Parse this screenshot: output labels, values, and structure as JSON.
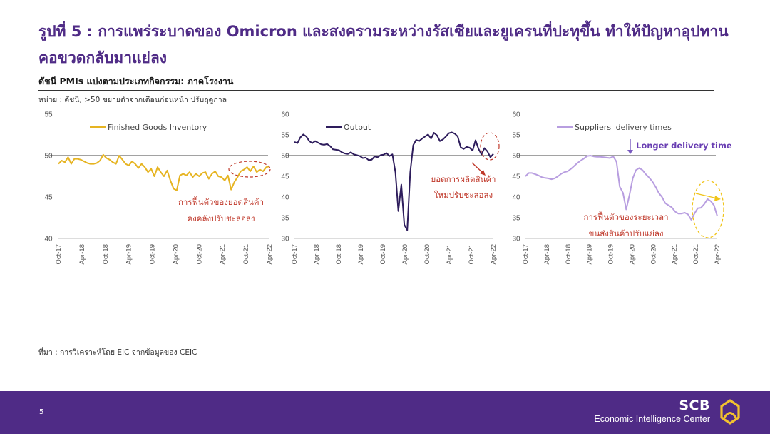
{
  "header": {
    "title": "รูปที่ 5 : การแพร่ระบาดของ Omicron และสงครามระหว่างรัสเซียและยูเครนที่ปะทุขึ้น ทำให้ปัญหาอุปทานคอขวดกลับมาแย่ลง",
    "subtitle": "ดัชนี PMIs แบ่งตามประเภทกิจกรรม: ภาคโรงงาน",
    "unit_note": "หน่วย : ดัชนี, >50 ขยายตัวจากเดือนก่อนหน้า ปรับฤดูกาล"
  },
  "source": "ที่มา : การวิเคราะห์โดย EIC จากข้อมูลของ CEIC",
  "footer": {
    "page_number": "5",
    "brand_name": "SCB",
    "brand_sub": "Economic Intelligence Center"
  },
  "colors": {
    "title": "#4f2b86",
    "footer": "#4f2b86",
    "annotation": "#c0392b",
    "gold": "#e6b422",
    "navy": "#2e1d5c",
    "lavender": "#b89ee0",
    "ellipse": "#f0c419"
  },
  "chart_data": [
    {
      "type": "line",
      "ylim": [
        40,
        55
      ],
      "yticks": [
        40,
        45,
        50,
        55
      ],
      "reference_line": 50,
      "x_ticks": [
        "Oct-17",
        "Apr-18",
        "Oct-18",
        "Apr-19",
        "Oct-19",
        "Apr-20",
        "Oct-20",
        "Apr-21",
        "Oct-21",
        "Apr-22"
      ],
      "x_start": "Oct-17",
      "series": [
        {
          "name": "Finished Goods Inventory",
          "color": "#e6b422",
          "values": [
            49.0,
            49.4,
            49.2,
            49.8,
            49.0,
            49.6,
            49.6,
            49.5,
            49.3,
            49.1,
            49.0,
            49.0,
            49.1,
            49.4,
            50.1,
            49.7,
            49.5,
            49.2,
            49.0,
            50.0,
            49.5,
            49.0,
            48.8,
            49.3,
            49.0,
            48.5,
            49.0,
            48.6,
            48.0,
            48.4,
            47.5,
            48.6,
            48.0,
            47.5,
            48.2,
            47.0,
            46.0,
            45.8,
            47.6,
            47.8,
            47.6,
            48.0,
            47.4,
            47.8,
            47.5,
            47.9,
            48.0,
            47.2,
            47.8,
            48.1,
            47.5,
            47.4,
            47.0,
            47.6,
            45.9,
            46.8,
            47.4,
            48.1,
            48.3,
            48.6,
            48.1,
            48.7,
            48.0,
            48.3,
            48.1,
            48.6,
            48.7
          ]
        }
      ],
      "annotation": [
        "การฟื้นตัวของยอดสินค้า",
        "คงคลังปรับชะลอลง"
      ]
    },
    {
      "type": "line",
      "ylim": [
        30,
        60
      ],
      "yticks": [
        30,
        35,
        40,
        45,
        50,
        55,
        60
      ],
      "reference_line": 50,
      "x_ticks": [
        "Oct-17",
        "Apr-18",
        "Oct-18",
        "Apr-19",
        "Oct-19",
        "Apr-20",
        "Oct-20",
        "Apr-21",
        "Oct-21",
        "Apr-22"
      ],
      "x_start": "Oct-17",
      "series": [
        {
          "name": "Output",
          "color": "#2e1d5c",
          "values": [
            53.3,
            53.0,
            54.4,
            55.1,
            54.6,
            53.5,
            53.0,
            53.5,
            53.1,
            52.7,
            52.6,
            52.8,
            52.3,
            51.5,
            51.4,
            51.3,
            50.8,
            50.5,
            50.4,
            50.8,
            50.3,
            50.1,
            49.9,
            49.4,
            49.5,
            48.9,
            49.0,
            49.8,
            49.6,
            50.1,
            50.2,
            50.6,
            49.9,
            50.3,
            46.0,
            36.6,
            43.0,
            33.3,
            32.0,
            46.0,
            52.5,
            53.8,
            53.5,
            54.1,
            54.6,
            55.1,
            54.1,
            55.5,
            54.9,
            53.5,
            53.9,
            54.6,
            55.4,
            55.6,
            55.3,
            54.6,
            52.0,
            51.6,
            52.1,
            51.9,
            51.2,
            53.7,
            51.6,
            50.3,
            51.8,
            51.0,
            49.6,
            50.4
          ]
        }
      ],
      "annotation": [
        "ยอดการผลิตสินค้า",
        "ใหม่ปรับชะลอลง"
      ]
    },
    {
      "type": "line",
      "ylim": [
        30,
        60
      ],
      "yticks": [
        30,
        35,
        40,
        45,
        50,
        55,
        60
      ],
      "reference_line": 50,
      "x_ticks": [
        "Oct-17",
        "Apr-18",
        "Oct-18",
        "Apr-19",
        "Oct-19",
        "Apr-20",
        "Oct-20",
        "Apr-21",
        "Oct-21",
        "Apr-22"
      ],
      "x_start": "Oct-17",
      "series": [
        {
          "name": "Suppliers' delivery times",
          "color": "#b89ee0",
          "values": [
            45.0,
            45.8,
            45.8,
            45.5,
            45.2,
            44.8,
            44.6,
            44.5,
            44.3,
            44.5,
            45.0,
            45.6,
            46.0,
            46.2,
            46.8,
            47.5,
            48.2,
            48.8,
            49.3,
            49.9,
            50.0,
            49.8,
            49.7,
            49.7,
            49.6,
            49.5,
            49.4,
            49.8,
            48.5,
            42.5,
            41.0,
            37.0,
            40.5,
            44.5,
            46.5,
            47.0,
            46.5,
            45.5,
            44.7,
            43.8,
            42.5,
            41.0,
            40.0,
            38.5,
            38.0,
            37.5,
            36.5,
            36.0,
            36.0,
            36.2,
            35.8,
            34.5,
            36.0,
            37.3,
            37.4,
            38.3,
            39.5,
            39.0,
            38.0,
            35.4
          ]
        }
      ],
      "annotations": {
        "longer_delivery": "Longer delivery time",
        "recovery_note": [
          "การฟื้นตัวของระยะเวลา",
          "ขนส่งสินค้าปรับแย่ลง"
        ]
      }
    }
  ]
}
